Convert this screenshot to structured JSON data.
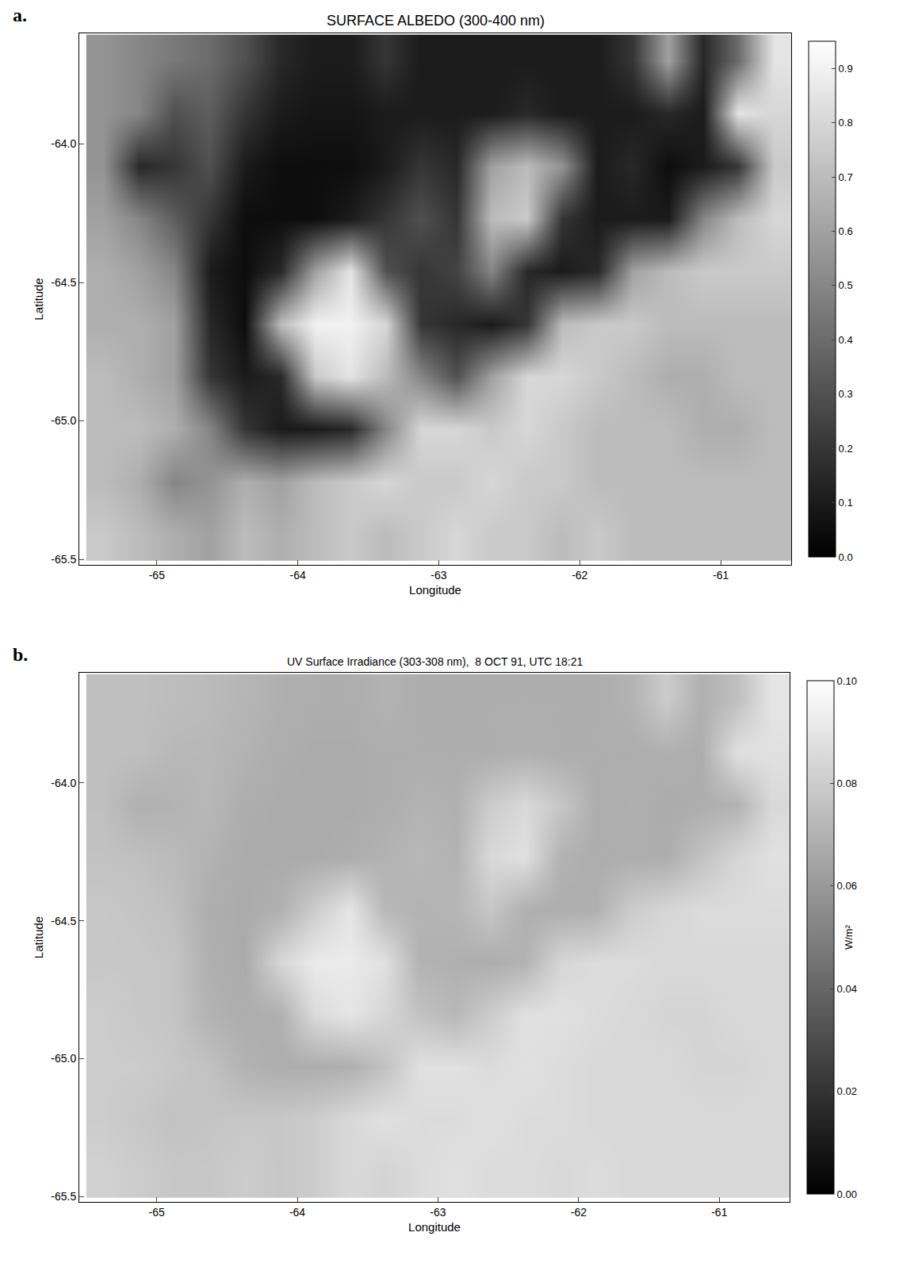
{
  "chart_data": [
    {
      "type": "heatmap",
      "panel_label": "a.",
      "title": "SURFACE ALBEDO (300-400 nm)",
      "x_label": "Longitude",
      "y_label": "Latitude",
      "xlim": [
        -65.55,
        -60.5
      ],
      "ylim": [
        -65.52,
        -63.6
      ],
      "xticks": [
        -65,
        -64,
        -63,
        -62,
        -61
      ],
      "yticks": [
        {
          "value": -64,
          "label": "-64.0"
        },
        -64.5,
        {
          "value": -65,
          "label": "-65.0"
        },
        -65.5
      ],
      "x": [
        -65.375,
        -65.125,
        -64.875,
        -64.625,
        -64.375,
        -64.125,
        -63.875,
        -63.625,
        -63.375,
        -63.125,
        -62.875,
        -62.625,
        -62.375,
        -62.125,
        -61.875,
        -61.625,
        -61.375,
        -61.125,
        -60.875,
        -60.625
      ],
      "y": [
        -65.41,
        -65.22,
        -65.03,
        -64.84,
        -64.65,
        -64.46,
        -64.27,
        -64.08,
        -63.89,
        -63.7
      ],
      "z": [
        [
          0.75,
          0.7,
          0.65,
          0.6,
          0.7,
          0.65,
          0.7,
          0.75,
          0.7,
          0.75,
          0.8,
          0.75,
          0.75,
          0.7,
          0.75,
          0.7,
          0.7,
          0.7,
          0.7,
          0.7
        ],
        [
          0.7,
          0.65,
          0.5,
          0.55,
          0.65,
          0.6,
          0.7,
          0.75,
          0.8,
          0.75,
          0.75,
          0.8,
          0.75,
          0.75,
          0.7,
          0.7,
          0.7,
          0.7,
          0.7,
          0.7
        ],
        [
          0.7,
          0.7,
          0.65,
          0.5,
          0.2,
          0.1,
          0.1,
          0.15,
          0.5,
          0.8,
          0.8,
          0.75,
          0.8,
          0.75,
          0.7,
          0.7,
          0.7,
          0.65,
          0.65,
          0.7
        ],
        [
          0.7,
          0.65,
          0.6,
          0.2,
          0.1,
          0.15,
          0.75,
          0.85,
          0.7,
          0.5,
          0.3,
          0.6,
          0.8,
          0.8,
          0.75,
          0.7,
          0.65,
          0.65,
          0.7,
          0.7
        ],
        [
          0.65,
          0.65,
          0.6,
          0.15,
          0.05,
          0.7,
          0.9,
          0.9,
          0.8,
          0.2,
          0.15,
          0.1,
          0.2,
          0.7,
          0.75,
          0.75,
          0.7,
          0.7,
          0.7,
          0.7
        ],
        [
          0.65,
          0.6,
          0.5,
          0.1,
          0.05,
          0.15,
          0.6,
          0.85,
          0.3,
          0.2,
          0.25,
          0.5,
          0.15,
          0.1,
          0.15,
          0.6,
          0.7,
          0.75,
          0.75,
          0.75
        ],
        [
          0.6,
          0.5,
          0.35,
          0.2,
          0.05,
          0.05,
          0.05,
          0.1,
          0.2,
          0.3,
          0.2,
          0.7,
          0.75,
          0.2,
          0.1,
          0.1,
          0.1,
          0.5,
          0.7,
          0.8
        ],
        [
          0.55,
          0.15,
          0.2,
          0.3,
          0.1,
          0.05,
          0.05,
          0.05,
          0.1,
          0.2,
          0.15,
          0.6,
          0.7,
          0.55,
          0.1,
          0.15,
          0.05,
          0.1,
          0.2,
          0.75
        ],
        [
          0.55,
          0.5,
          0.3,
          0.35,
          0.2,
          0.1,
          0.08,
          0.08,
          0.1,
          0.1,
          0.1,
          0.1,
          0.15,
          0.1,
          0.1,
          0.1,
          0.15,
          0.1,
          0.85,
          0.8
        ],
        [
          0.55,
          0.5,
          0.45,
          0.4,
          0.3,
          0.15,
          0.1,
          0.1,
          0.2,
          0.1,
          0.1,
          0.1,
          0.1,
          0.1,
          0.1,
          0.2,
          0.6,
          0.15,
          0.4,
          0.85
        ]
      ],
      "colorbar_range": [
        0,
        0.95
      ],
      "colorbar_ticks": [
        {
          "value": 0,
          "label": "0.0"
        },
        0.1,
        0.2,
        0.3,
        0.4,
        0.5,
        0.6,
        0.7,
        0.8,
        0.9
      ]
    },
    {
      "type": "heatmap",
      "panel_label": "b.",
      "title": "UV Surface Irradiance (303-308 nm),  8 OCT 91, UTC 18:21",
      "x_label": "Longitude",
      "y_label": "Latitude",
      "xlim": [
        -65.55,
        -60.5
      ],
      "ylim": [
        -65.52,
        -63.6
      ],
      "xticks": [
        -65,
        -64,
        -63,
        -62,
        -61
      ],
      "yticks": [
        {
          "value": -64,
          "label": "-64.0"
        },
        -64.5,
        {
          "value": -65,
          "label": "-65.0"
        },
        -65.5
      ],
      "x": [
        -65.375,
        -65.125,
        -64.875,
        -64.625,
        -64.375,
        -64.125,
        -63.875,
        -63.625,
        -63.375,
        -63.125,
        -62.875,
        -62.625,
        -62.375,
        -62.125,
        -61.875,
        -61.625,
        -61.375,
        -61.125,
        -60.875,
        -60.625
      ],
      "y": [
        -65.41,
        -65.22,
        -65.03,
        -64.84,
        -64.65,
        -64.46,
        -64.27,
        -64.08,
        -63.89,
        -63.7
      ],
      "z": [
        [
          0.082,
          0.08,
          0.078,
          0.078,
          0.08,
          0.078,
          0.08,
          0.085,
          0.083,
          0.086,
          0.088,
          0.086,
          0.086,
          0.085,
          0.086,
          0.085,
          0.085,
          0.085,
          0.085,
          0.085
        ],
        [
          0.08,
          0.078,
          0.076,
          0.077,
          0.078,
          0.078,
          0.08,
          0.085,
          0.088,
          0.086,
          0.086,
          0.088,
          0.086,
          0.086,
          0.085,
          0.085,
          0.085,
          0.085,
          0.085,
          0.085
        ],
        [
          0.08,
          0.08,
          0.078,
          0.076,
          0.07,
          0.068,
          0.068,
          0.069,
          0.076,
          0.088,
          0.088,
          0.086,
          0.088,
          0.086,
          0.085,
          0.085,
          0.085,
          0.083,
          0.083,
          0.085
        ],
        [
          0.08,
          0.078,
          0.077,
          0.07,
          0.068,
          0.069,
          0.086,
          0.09,
          0.084,
          0.076,
          0.072,
          0.08,
          0.088,
          0.088,
          0.086,
          0.085,
          0.083,
          0.083,
          0.085,
          0.085
        ],
        [
          0.078,
          0.078,
          0.077,
          0.069,
          0.067,
          0.084,
          0.092,
          0.092,
          0.088,
          0.07,
          0.069,
          0.068,
          0.07,
          0.084,
          0.086,
          0.086,
          0.085,
          0.085,
          0.085,
          0.085
        ],
        [
          0.078,
          0.077,
          0.075,
          0.068,
          0.067,
          0.069,
          0.08,
          0.09,
          0.072,
          0.07,
          0.071,
          0.078,
          0.069,
          0.068,
          0.069,
          0.08,
          0.084,
          0.086,
          0.086,
          0.086
        ],
        [
          0.076,
          0.075,
          0.073,
          0.07,
          0.067,
          0.067,
          0.067,
          0.068,
          0.07,
          0.072,
          0.07,
          0.085,
          0.088,
          0.07,
          0.068,
          0.068,
          0.068,
          0.076,
          0.084,
          0.088
        ],
        [
          0.075,
          0.069,
          0.07,
          0.072,
          0.068,
          0.067,
          0.067,
          0.067,
          0.068,
          0.07,
          0.069,
          0.08,
          0.085,
          0.078,
          0.068,
          0.069,
          0.067,
          0.068,
          0.07,
          0.085
        ],
        [
          0.075,
          0.075,
          0.072,
          0.072,
          0.07,
          0.068,
          0.067,
          0.067,
          0.068,
          0.068,
          0.068,
          0.068,
          0.069,
          0.068,
          0.068,
          0.068,
          0.069,
          0.068,
          0.088,
          0.088
        ],
        [
          0.075,
          0.075,
          0.074,
          0.073,
          0.071,
          0.069,
          0.068,
          0.068,
          0.07,
          0.068,
          0.068,
          0.068,
          0.068,
          0.068,
          0.068,
          0.07,
          0.08,
          0.069,
          0.075,
          0.09
        ]
      ],
      "colorbar_range": [
        0,
        0.1
      ],
      "colorbar_ticks": [
        {
          "value": 0,
          "label": "0.00"
        },
        {
          "value": 0.02,
          "label": "0.02"
        },
        {
          "value": 0.04,
          "label": "0.04"
        },
        {
          "value": 0.06,
          "label": "0.06"
        },
        {
          "value": 0.08,
          "label": "0.08"
        },
        {
          "value": 0.1,
          "label": "0.10"
        }
      ],
      "colorbar_title": "W/m²"
    }
  ]
}
